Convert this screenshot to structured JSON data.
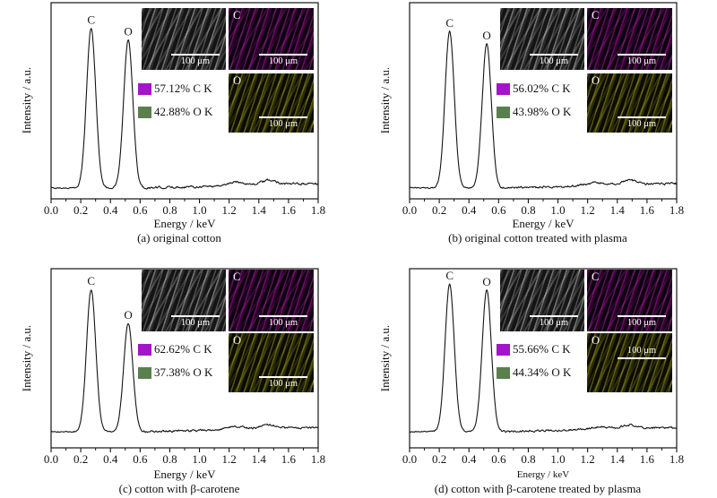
{
  "figure": {
    "panels": [
      {
        "caption": "(a) original cotton",
        "xlabel": "Energy / keV",
        "ylabel": "Intensity / a.u.",
        "legend": [
          {
            "swatch_color": "#A414C8",
            "label": "57.12% C K"
          },
          {
            "swatch_color": "#5A7F4C",
            "label": "42.88% O K"
          }
        ],
        "insets": {
          "sem": {
            "scale_label": "100 μm"
          },
          "c_map": {
            "label": "C",
            "scale_label": "100 μm"
          },
          "o_map": {
            "label": "O",
            "scale_label": "100 μm"
          }
        }
      },
      {
        "caption": "(b) original cotton treated with plasma",
        "xlabel": "Energy / keV",
        "ylabel": "Intensity / a.u.",
        "legend": [
          {
            "swatch_color": "#A414C8",
            "label": "56.02% C K"
          },
          {
            "swatch_color": "#5A7F4C",
            "label": "43.98% O K"
          }
        ],
        "insets": {
          "sem": {
            "scale_label": "100 μm"
          },
          "c_map": {
            "label": "C",
            "scale_label": "100 μm"
          },
          "o_map": {
            "label": "O",
            "scale_label": "100 μm"
          }
        }
      },
      {
        "caption": "(c) cotton with β-carotene",
        "xlabel": "Energy / keV",
        "ylabel": "Intensity / a.u.",
        "legend": [
          {
            "swatch_color": "#A414C8",
            "label": "62.62% C K"
          },
          {
            "swatch_color": "#5A7F4C",
            "label": "37.38% O K"
          }
        ],
        "insets": {
          "sem": {
            "scale_label": "100 μm"
          },
          "c_map": {
            "label": "C",
            "scale_label": "100 μm"
          },
          "o_map": {
            "label": "O",
            "scale_label": "100 μm"
          }
        }
      },
      {
        "caption": "(d) cotton with β-carotene treated by plasma",
        "xlabel": "Energy / keV",
        "ylabel": "Intensity / a.u.",
        "legend": [
          {
            "swatch_color": "#A414C8",
            "label": "55.66% C K"
          },
          {
            "swatch_color": "#5A7F4C",
            "label": "44.34% O K"
          }
        ],
        "insets": {
          "sem": {
            "scale_label": "100 μm"
          },
          "c_map": {
            "label": "C",
            "scale_label": "100 μm"
          },
          "o_map": {
            "label": "O",
            "scale_label": "100 μm"
          }
        }
      }
    ]
  },
  "chart_data": [
    {
      "type": "line",
      "title": "(a) original cotton",
      "xlabel": "Energy / keV",
      "ylabel": "Intensity / a.u.",
      "xlim": [
        0,
        1.8
      ],
      "x_major_ticks": [
        0.0,
        0.2,
        0.4,
        0.6,
        0.8,
        1.0,
        1.2,
        1.4,
        1.6,
        1.8
      ],
      "x_minor_step": 0.1,
      "y_axis": "arbitrary units, no ticks",
      "baseline_rel": 0.055,
      "peaks": [
        {
          "element": "C",
          "line": "K",
          "center_keV": 0.27,
          "sigma_keV": 0.031,
          "rel_height": 0.87
        },
        {
          "element": "O",
          "line": "K",
          "center_keV": 0.52,
          "sigma_keV": 0.031,
          "rel_height": 0.81
        }
      ],
      "background_bumps": [
        {
          "center_keV": 1.25,
          "rel_height": 0.018
        },
        {
          "center_keV": 1.47,
          "rel_height": 0.022
        }
      ],
      "composition_percent": {
        "C_K": 57.12,
        "O_K": 42.88
      }
    },
    {
      "type": "line",
      "title": "(b) original cotton treated with plasma",
      "xlabel": "Energy / keV",
      "ylabel": "Intensity / a.u.",
      "xlim": [
        0,
        1.8
      ],
      "x_major_ticks": [
        0.0,
        0.2,
        0.4,
        0.6,
        0.8,
        1.0,
        1.2,
        1.4,
        1.6,
        1.8
      ],
      "x_minor_step": 0.1,
      "y_axis": "arbitrary units, no ticks",
      "baseline_rel": 0.055,
      "peaks": [
        {
          "element": "C",
          "line": "K",
          "center_keV": 0.27,
          "sigma_keV": 0.031,
          "rel_height": 0.855
        },
        {
          "element": "O",
          "line": "K",
          "center_keV": 0.52,
          "sigma_keV": 0.031,
          "rel_height": 0.79
        }
      ],
      "background_bumps": [
        {
          "center_keV": 1.25,
          "rel_height": 0.015
        },
        {
          "center_keV": 1.48,
          "rel_height": 0.022
        }
      ],
      "composition_percent": {
        "C_K": 56.02,
        "O_K": 43.98
      }
    },
    {
      "type": "line",
      "title": "(c) cotton with β-carotene",
      "xlabel": "Energy / keV",
      "ylabel": "Intensity / a.u.",
      "xlim": [
        0,
        1.8
      ],
      "x_major_ticks": [
        0.0,
        0.2,
        0.4,
        0.6,
        0.8,
        1.0,
        1.2,
        1.4,
        1.6,
        1.8
      ],
      "x_minor_step": 0.1,
      "y_axis": "arbitrary units, no ticks",
      "baseline_rel": 0.09,
      "peaks": [
        {
          "element": "C",
          "line": "K",
          "center_keV": 0.27,
          "sigma_keV": 0.031,
          "rel_height": 0.885
        },
        {
          "element": "O",
          "line": "K",
          "center_keV": 0.52,
          "sigma_keV": 0.031,
          "rel_height": 0.695
        }
      ],
      "background_bumps": [
        {
          "center_keV": 1.25,
          "rel_height": 0.016
        },
        {
          "center_keV": 1.46,
          "rel_height": 0.02
        }
      ],
      "composition_percent": {
        "C_K": 62.62,
        "O_K": 37.38
      }
    },
    {
      "type": "line",
      "title": "(d) cotton with β-carotene treated by plasma",
      "xlabel": "Energy / keV",
      "ylabel": "Intensity / a.u.",
      "xlim": [
        0,
        1.8
      ],
      "x_major_ticks": [
        0.0,
        0.2,
        0.4,
        0.6,
        0.8,
        1.0,
        1.2,
        1.4,
        1.6,
        1.8
      ],
      "x_minor_step": 0.1,
      "y_axis": "arbitrary units, no ticks",
      "baseline_rel": 0.09,
      "peaks": [
        {
          "element": "C",
          "line": "K",
          "center_keV": 0.27,
          "sigma_keV": 0.031,
          "rel_height": 0.915
        },
        {
          "element": "O",
          "line": "K",
          "center_keV": 0.52,
          "sigma_keV": 0.031,
          "rel_height": 0.88
        }
      ],
      "background_bumps": [
        {
          "center_keV": 1.28,
          "rel_height": 0.014
        },
        {
          "center_keV": 1.48,
          "rel_height": 0.02
        }
      ],
      "composition_percent": {
        "C_K": 55.66,
        "O_K": 44.34
      }
    }
  ]
}
